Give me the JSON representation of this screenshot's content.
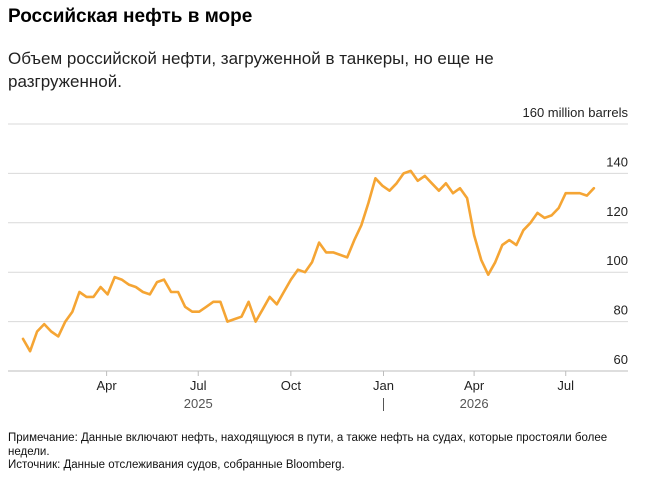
{
  "header": {
    "title": "Российская нефть в море",
    "subtitle": "Объем российской нефти, загруженной в танкеры, но еще не разгруженной."
  },
  "footer": {
    "note": "Примечание: Данные включают нефть, находящуюся в пути, а также нефть на судах, которые простояли более недели.",
    "source": "Источник: Данные отслеживания судов, собранные Bloomberg."
  },
  "colors": {
    "line": "#f5a534",
    "grid": "#d9d9d9",
    "text": "#222222"
  },
  "chart_data": {
    "type": "line",
    "title": "Российская нефть в море",
    "subtitle": "Объем российской нефти, загруженной в танкеры, но еще не разгруженной.",
    "xlabel": "",
    "ylabel": "",
    "unit_label": "160 million barrels",
    "ylim": [
      60,
      160
    ],
    "yticks": [
      {
        "value": 160,
        "label": "160 million barrels"
      },
      {
        "value": 140,
        "label": "140"
      },
      {
        "value": 120,
        "label": "120"
      },
      {
        "value": 100,
        "label": "100"
      },
      {
        "value": 80,
        "label": "80"
      },
      {
        "value": 60,
        "label": "60"
      }
    ],
    "xlim": [
      "2025-01-01",
      "2026-08-10"
    ],
    "xticks": [
      {
        "date": "2025-04-01",
        "label": "Apr"
      },
      {
        "date": "2025-07-01",
        "label": "Jul"
      },
      {
        "date": "2025-10-01",
        "label": "Oct"
      },
      {
        "date": "2026-01-01",
        "label": "Jan"
      },
      {
        "date": "2026-04-01",
        "label": "Apr"
      },
      {
        "date": "2026-07-01",
        "label": "Jul"
      }
    ],
    "year_labels": [
      {
        "date": "2025-07-01",
        "label": "2025"
      },
      {
        "date": "2026-04-01",
        "label": "2026"
      }
    ],
    "year_divider": "2026-01-01",
    "grid": true,
    "legend": "none",
    "series": [
      {
        "x": [
          "2025-01-08",
          "2025-01-15",
          "2025-01-22",
          "2025-01-29",
          "2025-02-05",
          "2025-02-12",
          "2025-02-19",
          "2025-02-26",
          "2025-03-05",
          "2025-03-12",
          "2025-03-19",
          "2025-03-26",
          "2025-04-02",
          "2025-04-09",
          "2025-04-16",
          "2025-04-23",
          "2025-04-30",
          "2025-05-07",
          "2025-05-14",
          "2025-05-21",
          "2025-05-28",
          "2025-06-04",
          "2025-06-11",
          "2025-06-18",
          "2025-06-25",
          "2025-07-02",
          "2025-07-09",
          "2025-07-16",
          "2025-07-23",
          "2025-07-30",
          "2025-08-06",
          "2025-08-13",
          "2025-08-20",
          "2025-08-27",
          "2025-09-03",
          "2025-09-10",
          "2025-09-17",
          "2025-09-24",
          "2025-10-01",
          "2025-10-08",
          "2025-10-15",
          "2025-10-22",
          "2025-10-29",
          "2025-11-05",
          "2025-11-12",
          "2025-11-19",
          "2025-11-26",
          "2025-12-03",
          "2025-12-10",
          "2025-12-17",
          "2025-12-24",
          "2025-12-31",
          "2026-01-07",
          "2026-01-14",
          "2026-01-21",
          "2026-01-28",
          "2026-02-04",
          "2026-02-11",
          "2026-02-18",
          "2026-02-25",
          "2026-03-04",
          "2026-03-11",
          "2026-03-18",
          "2026-03-25",
          "2026-04-01",
          "2026-04-08",
          "2026-04-15",
          "2026-04-22",
          "2026-04-29",
          "2026-05-06",
          "2026-05-13",
          "2026-05-20",
          "2026-05-27",
          "2026-06-03",
          "2026-06-10",
          "2026-06-17",
          "2026-06-24",
          "2026-07-01",
          "2026-07-08",
          "2026-07-15",
          "2026-07-22",
          "2026-07-29"
        ],
        "values": [
          73,
          68,
          76,
          79,
          76,
          74,
          80,
          84,
          92,
          90,
          90,
          94,
          91,
          98,
          97,
          95,
          94,
          92,
          91,
          96,
          97,
          92,
          92,
          86,
          84,
          84,
          86,
          88,
          88,
          80,
          81,
          82,
          88,
          80,
          85,
          90,
          87,
          92,
          97,
          101,
          100,
          104,
          112,
          108,
          108,
          107,
          106,
          113,
          119,
          128,
          138,
          135,
          133,
          136,
          140,
          141,
          137,
          139,
          136,
          133,
          136,
          132,
          134,
          130,
          115,
          105,
          99,
          104,
          111,
          113,
          111,
          117,
          120,
          124,
          122,
          123,
          126,
          132,
          132,
          132,
          131,
          134
        ]
      }
    ]
  }
}
